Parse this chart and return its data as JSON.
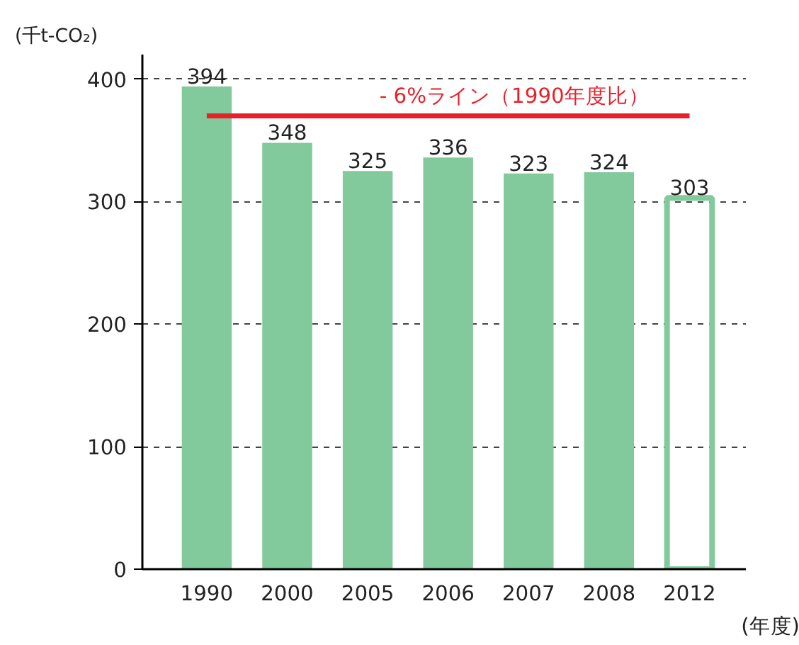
{
  "chart_data": {
    "type": "bar",
    "ylabel": "(千t-CO₂)",
    "xlabel": "(年度)",
    "categories": [
      "1990",
      "2000",
      "2005",
      "2006",
      "2007",
      "2008",
      "2012"
    ],
    "series": [
      {
        "color": "#82c99c",
        "values": [
          394,
          348,
          325,
          336,
          323,
          324,
          null
        ]
      },
      {
        "color": "#82c99c",
        "line_style": "solid",
        "values": [
          null,
          null,
          null,
          null,
          null,
          null,
          303
        ]
      }
    ],
    "ylim": [
      0,
      420
    ],
    "yticks": [
      0,
      100,
      200,
      300,
      400
    ],
    "grid": "y",
    "data_labels": true,
    "ref_lines": [
      {
        "axis": "y",
        "value": 370,
        "label": "- 6%ライン（1990年度比）",
        "color": "#e8202a"
      }
    ]
  }
}
